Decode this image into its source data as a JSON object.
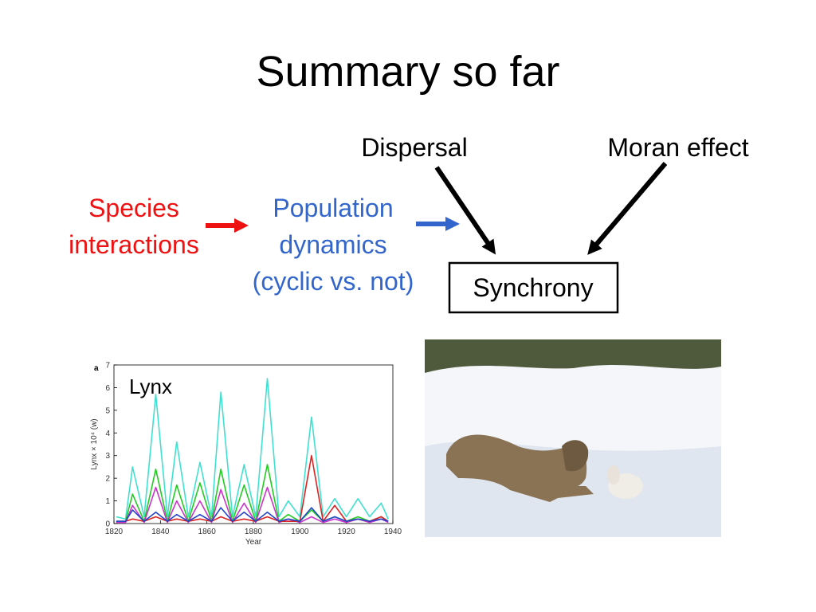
{
  "title": "Summary so far",
  "diagram": {
    "driver_left": [
      "Species",
      "interactions"
    ],
    "middle": [
      "Population",
      "dynamics",
      "(cyclic vs. not)"
    ],
    "dispersal": "Dispersal",
    "moran": "Moran effect",
    "outcome": "Synchrony"
  },
  "chart_data": {
    "type": "line",
    "panel_label": "a",
    "inset_label": "Lynx",
    "xlabel": "Year",
    "ylabel": "Lynx × 10⁴ (w)",
    "x": [
      1821,
      1825,
      1828,
      1833,
      1838,
      1843,
      1847,
      1852,
      1857,
      1862,
      1866,
      1871,
      1876,
      1881,
      1886,
      1891,
      1895,
      1900,
      1905,
      1910,
      1915,
      1920,
      1925,
      1930,
      1935,
      1938
    ],
    "series": [
      {
        "color": "#40e0d0",
        "values": [
          0.3,
          0.2,
          2.5,
          0.3,
          5.7,
          0.3,
          3.6,
          0.3,
          2.7,
          0.3,
          5.8,
          0.3,
          2.6,
          0.3,
          6.4,
          0.3,
          1.0,
          0.3,
          4.7,
          0.3,
          1.1,
          0.3,
          1.1,
          0.3,
          0.9,
          0.2
        ]
      },
      {
        "color": "#22cc22",
        "values": [
          0.1,
          0.1,
          1.3,
          0.1,
          2.4,
          0.1,
          1.7,
          0.1,
          1.8,
          0.1,
          2.4,
          0.1,
          1.7,
          0.1,
          2.6,
          0.1,
          0.4,
          0.1,
          0.6,
          0.1,
          0.3,
          0.1,
          0.3,
          0.1,
          0.3,
          0.1
        ]
      },
      {
        "color": "#cc33cc",
        "values": [
          0.05,
          0.05,
          0.8,
          0.05,
          1.6,
          0.05,
          1.0,
          0.05,
          1.0,
          0.05,
          1.5,
          0.05,
          0.9,
          0.05,
          1.6,
          0.05,
          0.2,
          0.05,
          0.3,
          0.05,
          0.2,
          0.05,
          0.2,
          0.05,
          0.2,
          0.05
        ]
      },
      {
        "color": "#dd2222",
        "values": [
          0.1,
          0.1,
          0.2,
          0.1,
          0.3,
          0.1,
          0.2,
          0.1,
          0.2,
          0.1,
          0.3,
          0.1,
          0.2,
          0.1,
          0.3,
          0.1,
          0.1,
          0.1,
          3.0,
          0.1,
          0.8,
          0.1,
          0.2,
          0.1,
          0.3,
          0.1
        ]
      },
      {
        "color": "#2244cc",
        "values": [
          0.1,
          0.1,
          0.6,
          0.1,
          0.5,
          0.1,
          0.4,
          0.1,
          0.4,
          0.1,
          0.7,
          0.1,
          0.5,
          0.1,
          0.5,
          0.1,
          0.2,
          0.1,
          0.7,
          0.1,
          0.3,
          0.1,
          0.2,
          0.1,
          0.2,
          0.1
        ]
      }
    ],
    "xlim": [
      1820,
      1940
    ],
    "xticks": [
      1820,
      1840,
      1860,
      1880,
      1900,
      1920,
      1940
    ],
    "ylim": [
      0,
      7
    ],
    "yticks": [
      0,
      1,
      2,
      3,
      4,
      5,
      6,
      7
    ]
  }
}
